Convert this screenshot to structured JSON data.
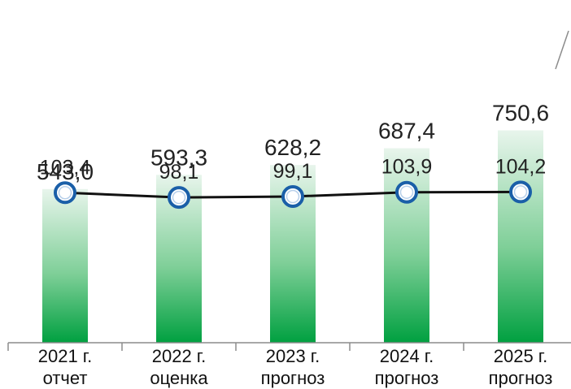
{
  "chart_data": {
    "type": "bar",
    "categories": [
      {
        "year": "2021 г.",
        "note": "отчет"
      },
      {
        "year": "2022 г.",
        "note": "оценка"
      },
      {
        "year": "2023 г.",
        "note": "прогноз"
      },
      {
        "year": "2024 г.",
        "note": "прогноз"
      },
      {
        "year": "2025 г.",
        "note": "прогноз"
      }
    ],
    "series": [
      {
        "type": "bar",
        "values": [
          543.0,
          593.3,
          628.2,
          687.4,
          750.6
        ],
        "labels": [
          "543,0",
          "593,3",
          "628,2",
          "687,4",
          "750,6"
        ]
      },
      {
        "type": "line",
        "values": [
          103.4,
          98.1,
          99.1,
          103.9,
          104.2
        ],
        "labels": [
          "103,4",
          "98,1",
          "99,1",
          "103,9",
          "104,2"
        ]
      }
    ],
    "ylim": [
      0,
      800
    ],
    "grid": false,
    "legend": "none",
    "colors": {
      "bar_top": "#e8f5ec",
      "bar_bottom": "#00a040",
      "line": "#111111",
      "marker_fill": "#ffffff",
      "marker_ring": "#1a5fa8",
      "axis": "#8c8c8c"
    }
  }
}
